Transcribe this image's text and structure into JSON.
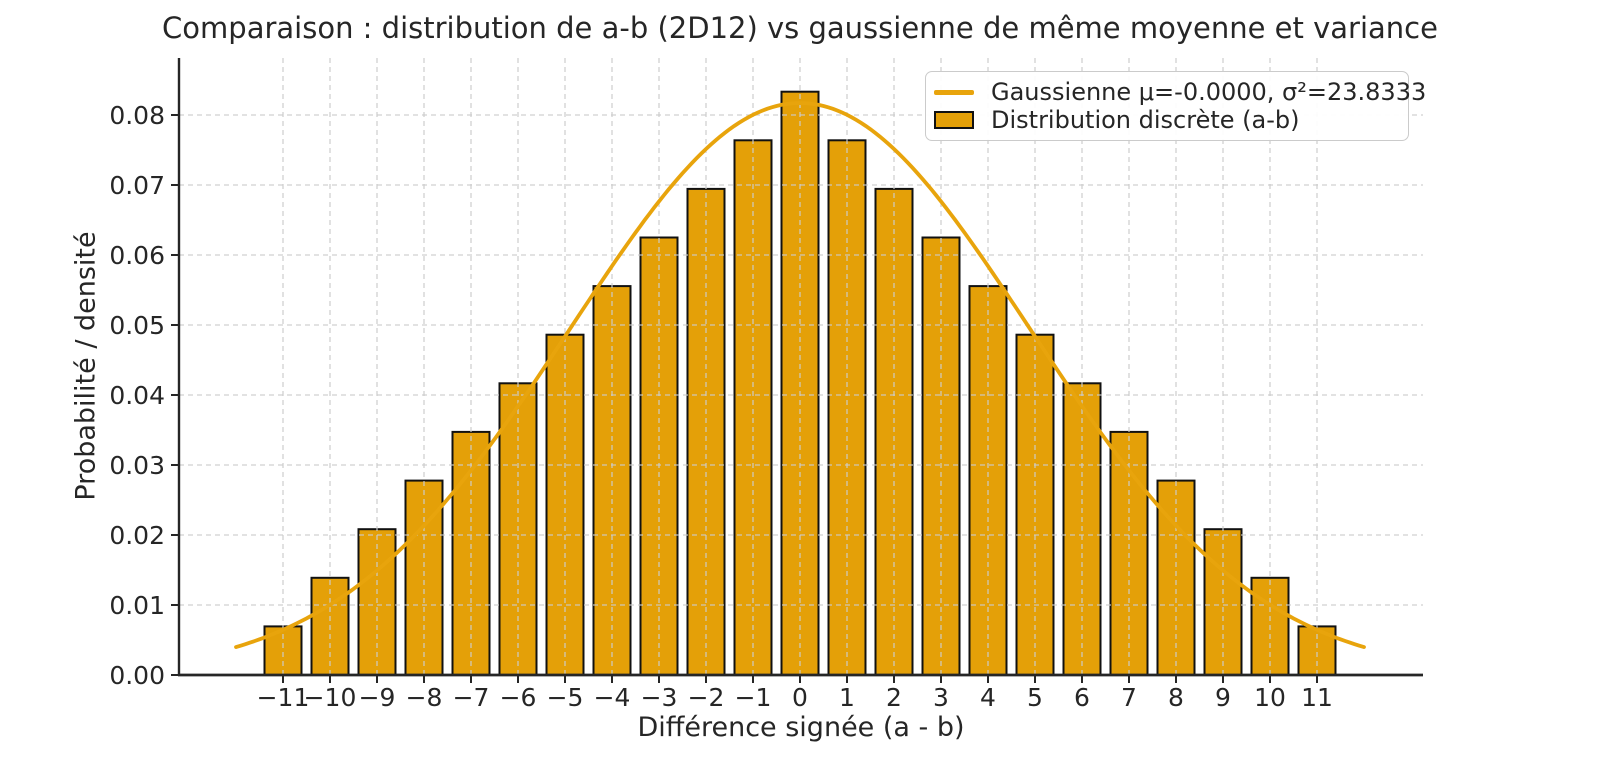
{
  "chart_data": {
    "type": "bar",
    "title": "Comparaison : distribution de a-b (2D12) vs gaussienne de même moyenne et variance",
    "xlabel": "Différence signée (a - b)",
    "ylabel": "Probabilité / densité",
    "categories": [
      -11,
      -10,
      -9,
      -8,
      -7,
      -6,
      -5,
      -4,
      -3,
      -2,
      -1,
      0,
      1,
      2,
      3,
      4,
      5,
      6,
      7,
      8,
      9,
      10,
      11
    ],
    "values": [
      0.006944,
      0.013889,
      0.020833,
      0.027778,
      0.034722,
      0.041667,
      0.048611,
      0.055556,
      0.0625,
      0.069444,
      0.076389,
      0.083333,
      0.076389,
      0.069444,
      0.0625,
      0.055556,
      0.048611,
      0.041667,
      0.034722,
      0.027778,
      0.020833,
      0.013889,
      0.006944
    ],
    "x_tick_labels": [
      "−11",
      "−10",
      "−9",
      "−8",
      "−7",
      "−6",
      "−5",
      "−4",
      "−3",
      "−2",
      "−1",
      "0",
      "1",
      "2",
      "3",
      "4",
      "5",
      "6",
      "7",
      "8",
      "9",
      "10",
      "11"
    ],
    "y_tick_values": [
      0,
      0.01,
      0.02,
      0.03,
      0.04,
      0.05,
      0.06,
      0.07,
      0.08
    ],
    "y_tick_labels": [
      "0.00",
      "0.01",
      "0.02",
      "0.03",
      "0.04",
      "0.05",
      "0.06",
      "0.07",
      "0.08"
    ],
    "xlim": [
      -13.2,
      13.3
    ],
    "ylim": [
      0,
      0.0881
    ],
    "grid": true,
    "legend_position": "upper right",
    "gaussian": {
      "mu": 0,
      "mu_label": "-0.0000",
      "sigma2": 23.8333,
      "x_range": [
        -12,
        12
      ]
    },
    "legend": [
      {
        "type": "line",
        "label": "Gaussienne μ=-0.0000, σ²=23.8333"
      },
      {
        "type": "patch",
        "label": "Distribution discrète (a-b)"
      }
    ],
    "colors": {
      "bar_fill": "#E4A008",
      "bar_edge": "#111111",
      "line": "#E8A40C",
      "grid": "#cccccc",
      "spine": "#262626",
      "text": "#262626",
      "legend_border": "#cbcbcb"
    }
  }
}
